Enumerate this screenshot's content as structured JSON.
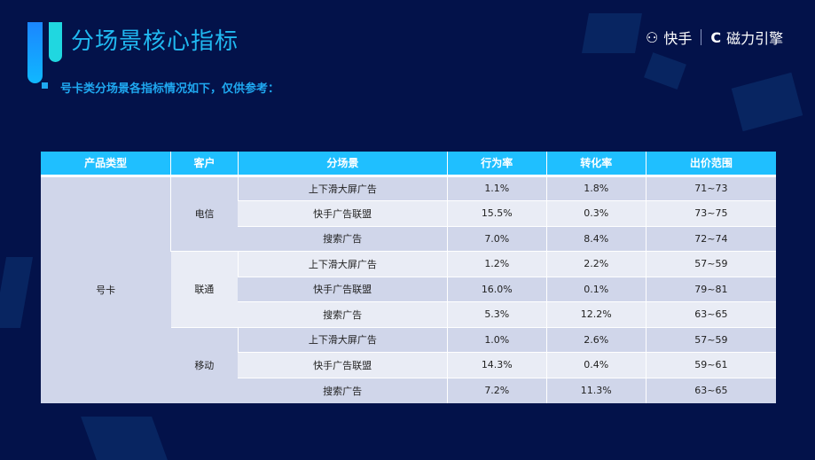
{
  "header": {
    "title": "分场景核心指标",
    "subtitle": "号卡类分场景各指标情况如下，仅供参考：",
    "logo": {
      "brand1": "快手",
      "brand2": "磁力引擎"
    }
  },
  "table": {
    "columns": [
      "产品类型",
      "客户",
      "分场景",
      "行为率",
      "转化率",
      "出价范围"
    ],
    "product": "号卡",
    "groups": [
      {
        "customer": "电信",
        "rows": [
          [
            "上下滑大屏广告",
            "1.1%",
            "1.8%",
            "71~73"
          ],
          [
            "快手广告联盟",
            "15.5%",
            "0.3%",
            "73~75"
          ],
          [
            "搜索广告",
            "7.0%",
            "8.4%",
            "72~74"
          ]
        ]
      },
      {
        "customer": "联通",
        "rows": [
          [
            "上下滑大屏广告",
            "1.2%",
            "2.2%",
            "57~59"
          ],
          [
            "快手广告联盟",
            "16.0%",
            "0.1%",
            "79~81"
          ],
          [
            "搜索广告",
            "5.3%",
            "12.2%",
            "63~65"
          ]
        ]
      },
      {
        "customer": "移动",
        "rows": [
          [
            "上下滑大屏广告",
            "1.0%",
            "2.6%",
            "57~59"
          ],
          [
            "快手广告联盟",
            "14.3%",
            "0.4%",
            "59~61"
          ],
          [
            "搜索广告",
            "7.2%",
            "11.3%",
            "63~65"
          ]
        ]
      }
    ]
  },
  "colors": {
    "background": "#03124a",
    "header": "#1fbfff",
    "accent": "#20b8f0"
  }
}
